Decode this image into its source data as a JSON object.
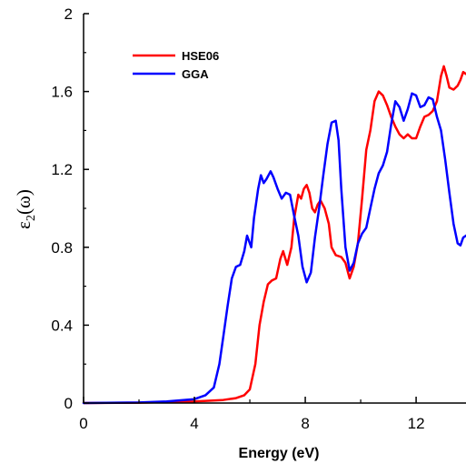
{
  "chart_data": {
    "type": "line",
    "title": "",
    "xlabel": "Energy (eV)",
    "ylabel_main": "ε",
    "ylabel_sub": "2",
    "ylabel_rest": "(ω)",
    "xlim": [
      0,
      13.8
    ],
    "ylim": [
      0,
      2
    ],
    "x_ticks": [
      0,
      4,
      8,
      12
    ],
    "x_tick_labels": [
      "0",
      "4",
      "8",
      "12"
    ],
    "y_ticks": [
      0,
      0.4,
      0.8,
      1.2,
      1.6,
      2
    ],
    "y_tick_labels": [
      "0",
      "0.4",
      "0.8",
      "1.2",
      "1.6",
      "2"
    ],
    "grid": false,
    "legend_position": "top-left",
    "series": [
      {
        "name": "HSE06",
        "color": "#ff0000",
        "points": [
          [
            0,
            0
          ],
          [
            2,
            0.002
          ],
          [
            4,
            0.008
          ],
          [
            5,
            0.015
          ],
          [
            5.5,
            0.025
          ],
          [
            5.8,
            0.04
          ],
          [
            6.0,
            0.07
          ],
          [
            6.2,
            0.2
          ],
          [
            6.35,
            0.4
          ],
          [
            6.5,
            0.52
          ],
          [
            6.65,
            0.61
          ],
          [
            6.8,
            0.63
          ],
          [
            6.95,
            0.64
          ],
          [
            7.1,
            0.74
          ],
          [
            7.2,
            0.78
          ],
          [
            7.35,
            0.71
          ],
          [
            7.5,
            0.8
          ],
          [
            7.6,
            0.95
          ],
          [
            7.75,
            1.07
          ],
          [
            7.85,
            1.05
          ],
          [
            7.95,
            1.1
          ],
          [
            8.05,
            1.12
          ],
          [
            8.15,
            1.08
          ],
          [
            8.25,
            1.0
          ],
          [
            8.35,
            0.98
          ],
          [
            8.45,
            1.02
          ],
          [
            8.55,
            1.04
          ],
          [
            8.7,
            1.0
          ],
          [
            8.85,
            0.92
          ],
          [
            8.95,
            0.8
          ],
          [
            9.1,
            0.76
          ],
          [
            9.3,
            0.75
          ],
          [
            9.45,
            0.72
          ],
          [
            9.6,
            0.64
          ],
          [
            9.75,
            0.7
          ],
          [
            9.9,
            0.82
          ],
          [
            10.05,
            1.05
          ],
          [
            10.2,
            1.3
          ],
          [
            10.35,
            1.4
          ],
          [
            10.5,
            1.55
          ],
          [
            10.65,
            1.6
          ],
          [
            10.8,
            1.58
          ],
          [
            10.95,
            1.53
          ],
          [
            11.1,
            1.47
          ],
          [
            11.25,
            1.42
          ],
          [
            11.4,
            1.38
          ],
          [
            11.55,
            1.36
          ],
          [
            11.7,
            1.38
          ],
          [
            11.85,
            1.36
          ],
          [
            12.0,
            1.36
          ],
          [
            12.15,
            1.42
          ],
          [
            12.3,
            1.47
          ],
          [
            12.45,
            1.48
          ],
          [
            12.6,
            1.5
          ],
          [
            12.75,
            1.55
          ],
          [
            12.9,
            1.68
          ],
          [
            13.0,
            1.73
          ],
          [
            13.1,
            1.68
          ],
          [
            13.2,
            1.62
          ],
          [
            13.35,
            1.61
          ],
          [
            13.5,
            1.63
          ],
          [
            13.6,
            1.66
          ],
          [
            13.7,
            1.7
          ],
          [
            13.8,
            1.69
          ]
        ]
      },
      {
        "name": "GGA",
        "color": "#0000ff",
        "points": [
          [
            0,
            0
          ],
          [
            2,
            0.003
          ],
          [
            3,
            0.008
          ],
          [
            4,
            0.02
          ],
          [
            4.4,
            0.04
          ],
          [
            4.7,
            0.08
          ],
          [
            4.9,
            0.2
          ],
          [
            5.05,
            0.35
          ],
          [
            5.2,
            0.5
          ],
          [
            5.35,
            0.64
          ],
          [
            5.5,
            0.7
          ],
          [
            5.65,
            0.71
          ],
          [
            5.8,
            0.78
          ],
          [
            5.9,
            0.86
          ],
          [
            6.05,
            0.8
          ],
          [
            6.15,
            0.95
          ],
          [
            6.3,
            1.1
          ],
          [
            6.4,
            1.17
          ],
          [
            6.5,
            1.13
          ],
          [
            6.6,
            1.15
          ],
          [
            6.75,
            1.19
          ],
          [
            6.85,
            1.16
          ],
          [
            7.0,
            1.1
          ],
          [
            7.15,
            1.05
          ],
          [
            7.3,
            1.08
          ],
          [
            7.45,
            1.07
          ],
          [
            7.6,
            0.96
          ],
          [
            7.75,
            0.86
          ],
          [
            7.9,
            0.7
          ],
          [
            8.05,
            0.62
          ],
          [
            8.2,
            0.67
          ],
          [
            8.35,
            0.85
          ],
          [
            8.5,
            1.0
          ],
          [
            8.65,
            1.17
          ],
          [
            8.8,
            1.33
          ],
          [
            8.95,
            1.44
          ],
          [
            9.1,
            1.45
          ],
          [
            9.2,
            1.35
          ],
          [
            9.3,
            1.1
          ],
          [
            9.45,
            0.8
          ],
          [
            9.6,
            0.68
          ],
          [
            9.75,
            0.72
          ],
          [
            9.9,
            0.82
          ],
          [
            10.05,
            0.87
          ],
          [
            10.2,
            0.9
          ],
          [
            10.35,
            1.0
          ],
          [
            10.5,
            1.1
          ],
          [
            10.65,
            1.18
          ],
          [
            10.8,
            1.22
          ],
          [
            10.95,
            1.29
          ],
          [
            11.1,
            1.43
          ],
          [
            11.25,
            1.55
          ],
          [
            11.4,
            1.52
          ],
          [
            11.55,
            1.45
          ],
          [
            11.7,
            1.51
          ],
          [
            11.85,
            1.59
          ],
          [
            12.0,
            1.58
          ],
          [
            12.15,
            1.52
          ],
          [
            12.3,
            1.53
          ],
          [
            12.45,
            1.57
          ],
          [
            12.6,
            1.56
          ],
          [
            12.75,
            1.47
          ],
          [
            12.9,
            1.4
          ],
          [
            13.05,
            1.25
          ],
          [
            13.2,
            1.08
          ],
          [
            13.35,
            0.92
          ],
          [
            13.5,
            0.82
          ],
          [
            13.6,
            0.81
          ],
          [
            13.7,
            0.85
          ],
          [
            13.8,
            0.86
          ]
        ]
      }
    ]
  }
}
